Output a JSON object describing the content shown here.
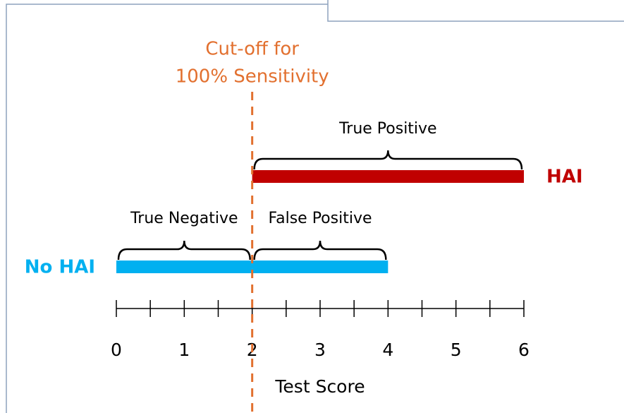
{
  "diagram": {
    "cutoff": {
      "lines": [
        "Cut-off for",
        "100% Sensitivity"
      ],
      "value": 2,
      "color": "#e2702f"
    },
    "axis": {
      "label": "Test Score",
      "xlim": [
        0,
        6
      ],
      "xticks": [
        0,
        1,
        2,
        3,
        4,
        5,
        6
      ],
      "minor_ticks": [
        0.5,
        1.5,
        2.5,
        3.5,
        4.5,
        5.5
      ]
    },
    "bars": [
      {
        "name": "HAI",
        "color": "#c00000",
        "start": 2,
        "end": 6
      },
      {
        "name": "No HAI",
        "color": "#00b0f0",
        "start": 0,
        "end": 4
      }
    ],
    "braces": [
      {
        "label": "True Positive",
        "start": 2,
        "end": 6
      },
      {
        "label": "True Negative",
        "start": 0,
        "end": 2
      },
      {
        "label": "False Positive",
        "start": 2,
        "end": 4
      }
    ]
  }
}
